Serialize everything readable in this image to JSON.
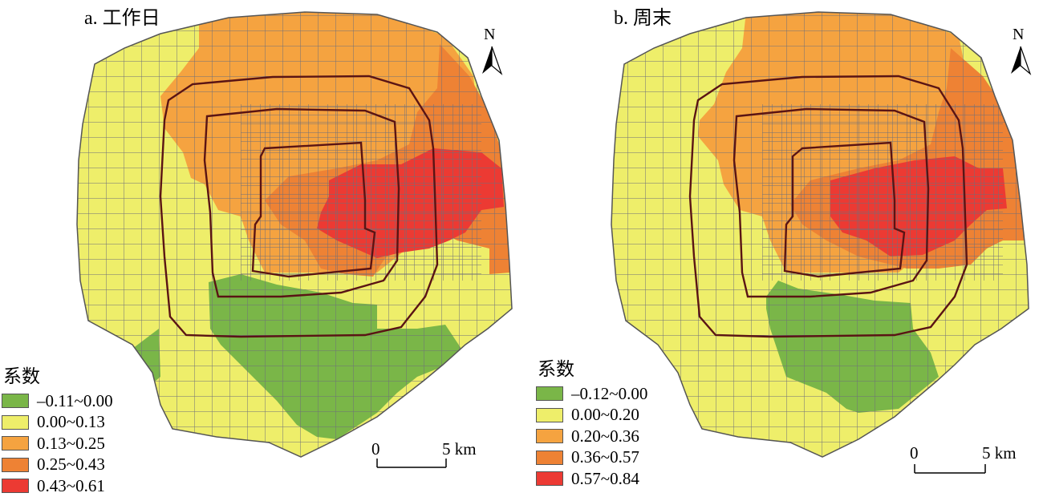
{
  "panels": [
    {
      "id": "a",
      "title": "a. 工作日",
      "legend_title": "系数",
      "legend": [
        {
          "label": "–0.11~0.00",
          "color": "#7ab648"
        },
        {
          "label": "0.00~0.13",
          "color": "#eeee6a"
        },
        {
          "label": "0.13~0.25",
          "color": "#f5a340"
        },
        {
          "label": "0.25~0.43",
          "color": "#ee8234"
        },
        {
          "label": "0.43~0.61",
          "color": "#ec3a33"
        }
      ],
      "scale": {
        "start": "0",
        "end": "5 km"
      },
      "north": "N"
    },
    {
      "id": "b",
      "title": "b. 周末",
      "legend_title": "系数",
      "legend": [
        {
          "label": "–0.12~0.00",
          "color": "#7ab648"
        },
        {
          "label": "0.00~0.20",
          "color": "#eeee6a"
        },
        {
          "label": "0.20~0.36",
          "color": "#f5a340"
        },
        {
          "label": "0.36~0.57",
          "color": "#ee8234"
        },
        {
          "label": "0.57~0.84",
          "color": "#ec3a33"
        }
      ],
      "scale": {
        "start": "0",
        "end": "5 km"
      },
      "north": "N"
    }
  ],
  "colors": {
    "green": "#7ab648",
    "yellow": "#eeee6a",
    "light_orange": "#f5a340",
    "orange": "#ee8234",
    "red": "#ec3a33",
    "district_border": "#6f6f7a",
    "ring_road": "#5a1414"
  }
}
